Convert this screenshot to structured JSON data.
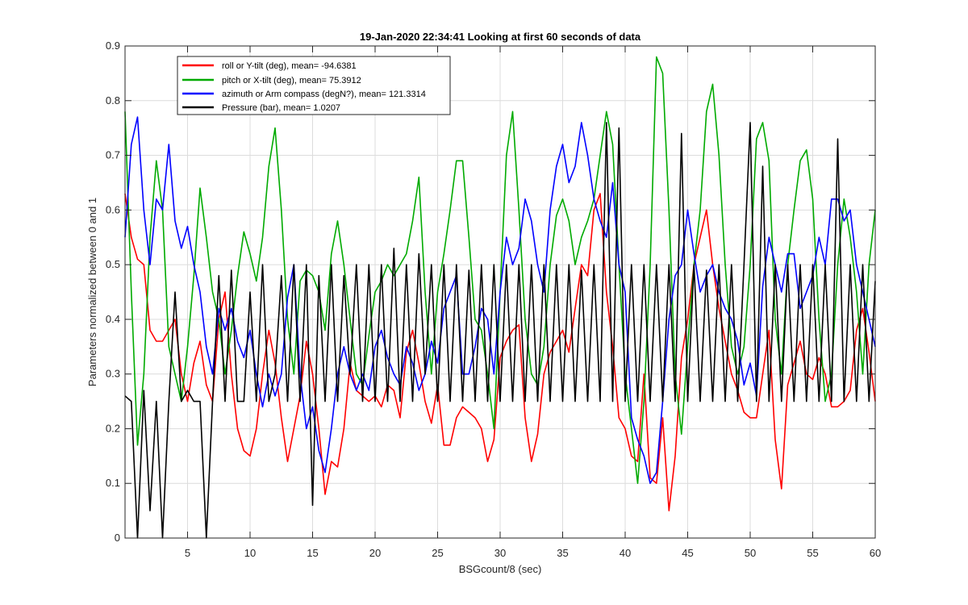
{
  "chart_data": {
    "type": "line",
    "title": "19-Jan-2020 22:34:41 Looking at first 60 seconds of data",
    "xlabel": "BSGcount/8 (sec)",
    "ylabel": "Parameters normalized between 0 and 1",
    "xlim": [
      0,
      60
    ],
    "ylim": [
      0,
      0.9
    ],
    "xticks": [
      5,
      10,
      15,
      20,
      25,
      30,
      35,
      40,
      45,
      50,
      55,
      60
    ],
    "xtick_labels": [
      "5",
      "10",
      "15",
      "20",
      "25",
      "30",
      "35",
      "40",
      "45",
      "50",
      "55",
      "60"
    ],
    "yticks": [
      0,
      0.1,
      0.2,
      0.3,
      0.4,
      0.5,
      0.6,
      0.7,
      0.8,
      0.9
    ],
    "ytick_labels": [
      "0",
      "0.1",
      "0.2",
      "0.3",
      "0.4",
      "0.5",
      "0.6",
      "0.7",
      "0.8",
      "0.9"
    ],
    "grid": true,
    "legend_position": "top-left",
    "series": [
      {
        "name": "roll or Y-tilt (deg), mean= -94.6381",
        "color": "#ff0000",
        "x": [
          0,
          0.5,
          1,
          1.5,
          2,
          2.5,
          3,
          3.5,
          4,
          4.5,
          5,
          5.5,
          6,
          6.5,
          7,
          7.5,
          8,
          8.5,
          9,
          9.5,
          10,
          10.5,
          11,
          11.5,
          12,
          12.5,
          13,
          13.5,
          14,
          14.5,
          15,
          15.5,
          16,
          16.5,
          17,
          17.5,
          18,
          18.5,
          19,
          19.5,
          20,
          20.5,
          21,
          21.5,
          22,
          22.5,
          23,
          23.5,
          24,
          24.5,
          25,
          25.5,
          26,
          26.5,
          27,
          27.5,
          28,
          28.5,
          29,
          29.5,
          30,
          30.5,
          31,
          31.5,
          32,
          32.5,
          33,
          33.5,
          34,
          34.5,
          35,
          35.5,
          36,
          36.5,
          37,
          37.5,
          38,
          38.5,
          39,
          39.5,
          40,
          40.5,
          41,
          41.5,
          42,
          42.5,
          43,
          43.5,
          44,
          44.5,
          45,
          45.5,
          46,
          46.5,
          47,
          47.5,
          48,
          48.5,
          49,
          49.5,
          50,
          50.5,
          51,
          51.5,
          52,
          52.5,
          53,
          53.5,
          54,
          54.5,
          55,
          55.5,
          56,
          56.5,
          57,
          57.5,
          58,
          58.5,
          59,
          59.5,
          60
        ],
        "values": [
          0.63,
          0.55,
          0.51,
          0.5,
          0.38,
          0.36,
          0.36,
          0.38,
          0.4,
          0.3,
          0.25,
          0.32,
          0.36,
          0.28,
          0.25,
          0.4,
          0.45,
          0.3,
          0.2,
          0.16,
          0.15,
          0.2,
          0.3,
          0.38,
          0.32,
          0.22,
          0.14,
          0.2,
          0.26,
          0.36,
          0.3,
          0.2,
          0.08,
          0.14,
          0.13,
          0.2,
          0.32,
          0.27,
          0.26,
          0.25,
          0.26,
          0.24,
          0.28,
          0.27,
          0.22,
          0.34,
          0.38,
          0.32,
          0.25,
          0.21,
          0.28,
          0.17,
          0.17,
          0.22,
          0.24,
          0.23,
          0.22,
          0.2,
          0.14,
          0.18,
          0.33,
          0.36,
          0.38,
          0.39,
          0.22,
          0.14,
          0.19,
          0.3,
          0.34,
          0.36,
          0.38,
          0.34,
          0.42,
          0.5,
          0.48,
          0.6,
          0.63,
          0.45,
          0.35,
          0.22,
          0.2,
          0.15,
          0.14,
          0.3,
          0.11,
          0.1,
          0.22,
          0.05,
          0.15,
          0.33,
          0.4,
          0.5,
          0.55,
          0.6,
          0.5,
          0.42,
          0.36,
          0.3,
          0.27,
          0.23,
          0.22,
          0.22,
          0.3,
          0.38,
          0.18,
          0.09,
          0.28,
          0.32,
          0.36,
          0.3,
          0.29,
          0.33,
          0.3,
          0.24,
          0.24,
          0.25,
          0.27,
          0.38,
          0.42,
          0.34,
          0.25
        ]
      },
      {
        "name": "pitch or X-tilt (deg), mean= 75.3912",
        "color": "#00aa00",
        "x": [
          0,
          0.5,
          1,
          1.5,
          2,
          2.5,
          3,
          3.5,
          4,
          4.5,
          5,
          5.5,
          6,
          6.5,
          7,
          7.5,
          8,
          8.5,
          9,
          9.5,
          10,
          10.5,
          11,
          11.5,
          12,
          12.5,
          13,
          13.5,
          14,
          14.5,
          15,
          15.5,
          16,
          16.5,
          17,
          17.5,
          18,
          18.5,
          19,
          19.5,
          20,
          20.5,
          21,
          21.5,
          22,
          22.5,
          23,
          23.5,
          24,
          24.5,
          25,
          25.5,
          26,
          26.5,
          27,
          27.5,
          28,
          28.5,
          29,
          29.5,
          30,
          30.5,
          31,
          31.5,
          32,
          32.5,
          33,
          33.5,
          34,
          34.5,
          35,
          35.5,
          36,
          36.5,
          37,
          37.5,
          38,
          38.5,
          39,
          39.5,
          40,
          40.5,
          41,
          41.5,
          42,
          42.5,
          43,
          43.5,
          44,
          44.5,
          45,
          45.5,
          46,
          46.5,
          47,
          47.5,
          48,
          48.5,
          49,
          49.5,
          50,
          50.5,
          51,
          51.5,
          52,
          52.5,
          53,
          53.5,
          54,
          54.5,
          55,
          55.5,
          56,
          56.5,
          57,
          57.5,
          58,
          58.5,
          59,
          59.5,
          60
        ],
        "values": [
          0.78,
          0.45,
          0.17,
          0.3,
          0.55,
          0.69,
          0.6,
          0.35,
          0.3,
          0.25,
          0.35,
          0.48,
          0.64,
          0.55,
          0.45,
          0.4,
          0.3,
          0.38,
          0.48,
          0.56,
          0.52,
          0.47,
          0.55,
          0.68,
          0.75,
          0.6,
          0.4,
          0.3,
          0.47,
          0.49,
          0.48,
          0.45,
          0.38,
          0.52,
          0.58,
          0.5,
          0.4,
          0.3,
          0.28,
          0.37,
          0.45,
          0.47,
          0.5,
          0.48,
          0.5,
          0.52,
          0.58,
          0.66,
          0.45,
          0.3,
          0.45,
          0.52,
          0.6,
          0.69,
          0.69,
          0.55,
          0.4,
          0.38,
          0.3,
          0.2,
          0.45,
          0.7,
          0.78,
          0.6,
          0.4,
          0.3,
          0.28,
          0.35,
          0.5,
          0.59,
          0.62,
          0.58,
          0.5,
          0.55,
          0.58,
          0.62,
          0.7,
          0.78,
          0.72,
          0.5,
          0.3,
          0.2,
          0.1,
          0.25,
          0.5,
          0.88,
          0.85,
          0.6,
          0.3,
          0.19,
          0.35,
          0.5,
          0.6,
          0.78,
          0.83,
          0.7,
          0.5,
          0.35,
          0.3,
          0.35,
          0.5,
          0.73,
          0.76,
          0.69,
          0.4,
          0.3,
          0.5,
          0.6,
          0.69,
          0.71,
          0.62,
          0.4,
          0.25,
          0.3,
          0.5,
          0.62,
          0.55,
          0.45,
          0.3,
          0.5,
          0.6
        ]
      },
      {
        "name": "azimuth or Arm compass (degN?), mean= 121.3314",
        "color": "#0000ff",
        "x": [
          0,
          0.5,
          1,
          1.5,
          2,
          2.5,
          3,
          3.5,
          4,
          4.5,
          5,
          5.5,
          6,
          6.5,
          7,
          7.5,
          8,
          8.5,
          9,
          9.5,
          10,
          10.5,
          11,
          11.5,
          12,
          12.5,
          13,
          13.5,
          14,
          14.5,
          15,
          15.5,
          16,
          16.5,
          17,
          17.5,
          18,
          18.5,
          19,
          19.5,
          20,
          20.5,
          21,
          21.5,
          22,
          22.5,
          23,
          23.5,
          24,
          24.5,
          25,
          25.5,
          26,
          26.5,
          27,
          27.5,
          28,
          28.5,
          29,
          29.5,
          30,
          30.5,
          31,
          31.5,
          32,
          32.5,
          33,
          33.5,
          34,
          34.5,
          35,
          35.5,
          36,
          36.5,
          37,
          37.5,
          38,
          38.5,
          39,
          39.5,
          40,
          40.5,
          41,
          41.5,
          42,
          42.5,
          43,
          43.5,
          44,
          44.5,
          45,
          45.5,
          46,
          46.5,
          47,
          47.5,
          48,
          48.5,
          49,
          49.5,
          50,
          50.5,
          51,
          51.5,
          52,
          52.5,
          53,
          53.5,
          54,
          54.5,
          55,
          55.5,
          56,
          56.5,
          57,
          57.5,
          58,
          58.5,
          59,
          59.5,
          60
        ],
        "values": [
          0.55,
          0.72,
          0.77,
          0.6,
          0.5,
          0.62,
          0.6,
          0.72,
          0.58,
          0.53,
          0.57,
          0.5,
          0.45,
          0.35,
          0.3,
          0.42,
          0.38,
          0.42,
          0.36,
          0.33,
          0.38,
          0.3,
          0.24,
          0.3,
          0.26,
          0.3,
          0.44,
          0.5,
          0.3,
          0.2,
          0.24,
          0.16,
          0.12,
          0.2,
          0.3,
          0.35,
          0.3,
          0.27,
          0.3,
          0.27,
          0.35,
          0.38,
          0.33,
          0.3,
          0.28,
          0.35,
          0.32,
          0.27,
          0.3,
          0.36,
          0.32,
          0.42,
          0.45,
          0.48,
          0.3,
          0.3,
          0.35,
          0.42,
          0.4,
          0.3,
          0.45,
          0.55,
          0.5,
          0.53,
          0.62,
          0.58,
          0.5,
          0.45,
          0.6,
          0.68,
          0.72,
          0.65,
          0.68,
          0.76,
          0.7,
          0.62,
          0.58,
          0.55,
          0.65,
          0.5,
          0.45,
          0.22,
          0.18,
          0.15,
          0.1,
          0.12,
          0.25,
          0.4,
          0.48,
          0.5,
          0.6,
          0.52,
          0.45,
          0.48,
          0.5,
          0.45,
          0.42,
          0.4,
          0.36,
          0.28,
          0.32,
          0.26,
          0.46,
          0.55,
          0.5,
          0.45,
          0.52,
          0.52,
          0.42,
          0.45,
          0.48,
          0.55,
          0.5,
          0.62,
          0.62,
          0.58,
          0.6,
          0.5,
          0.45,
          0.4,
          0.35
        ]
      },
      {
        "name": "Pressure (bar), mean= 1.0207",
        "color": "#000000",
        "x": [
          0,
          0.5,
          1,
          1.5,
          2,
          2.5,
          3,
          3.5,
          4,
          4.5,
          5,
          5.5,
          6,
          6.5,
          7,
          7.5,
          8,
          8.5,
          9,
          9.5,
          10,
          10.5,
          11,
          11.5,
          12,
          12.5,
          13,
          13.5,
          14,
          14.5,
          15,
          15.5,
          16,
          16.5,
          17,
          17.5,
          18,
          18.5,
          19,
          19.5,
          20,
          20.5,
          21,
          21.5,
          22,
          22.5,
          23,
          23.5,
          24,
          24.5,
          25,
          25.5,
          26,
          26.5,
          27,
          27.5,
          28,
          28.5,
          29,
          29.5,
          30,
          30.5,
          31,
          31.5,
          32,
          32.5,
          33,
          33.5,
          34,
          34.5,
          35,
          35.5,
          36,
          36.5,
          37,
          37.5,
          38,
          38.5,
          39,
          39.5,
          40,
          40.5,
          41,
          41.5,
          42,
          42.5,
          43,
          43.5,
          44,
          44.5,
          45,
          45.5,
          46,
          46.5,
          47,
          47.5,
          48,
          48.5,
          49,
          49.5,
          50,
          50.5,
          51,
          51.5,
          52,
          52.5,
          53,
          53.5,
          54,
          54.5,
          55,
          55.5,
          56,
          56.5,
          57,
          57.5,
          58,
          58.5,
          59,
          59.5,
          60
        ],
        "values": [
          0.26,
          0.25,
          0.0,
          0.27,
          0.05,
          0.25,
          0.0,
          0.25,
          0.45,
          0.25,
          0.27,
          0.25,
          0.25,
          0.0,
          0.25,
          0.48,
          0.25,
          0.49,
          0.25,
          0.25,
          0.45,
          0.25,
          0.5,
          0.25,
          0.3,
          0.48,
          0.25,
          0.5,
          0.25,
          0.5,
          0.06,
          0.48,
          0.25,
          0.5,
          0.25,
          0.48,
          0.3,
          0.5,
          0.25,
          0.5,
          0.25,
          0.5,
          0.25,
          0.53,
          0.25,
          0.5,
          0.25,
          0.52,
          0.3,
          0.5,
          0.25,
          0.5,
          0.25,
          0.5,
          0.25,
          0.49,
          0.25,
          0.5,
          0.25,
          0.5,
          0.25,
          0.5,
          0.25,
          0.5,
          0.25,
          0.5,
          0.25,
          0.5,
          0.25,
          0.5,
          0.25,
          0.5,
          0.25,
          0.49,
          0.25,
          0.5,
          0.25,
          0.76,
          0.25,
          0.75,
          0.25,
          0.5,
          0.25,
          0.5,
          0.25,
          0.5,
          0.25,
          0.5,
          0.25,
          0.74,
          0.25,
          0.5,
          0.25,
          0.49,
          0.25,
          0.5,
          0.25,
          0.5,
          0.25,
          0.5,
          0.76,
          0.25,
          0.68,
          0.25,
          0.5,
          0.25,
          0.5,
          0.25,
          0.5,
          0.25,
          0.5,
          0.25,
          0.5,
          0.25,
          0.73,
          0.25,
          0.5,
          0.25,
          0.5,
          0.25,
          0.47
        ]
      }
    ]
  }
}
